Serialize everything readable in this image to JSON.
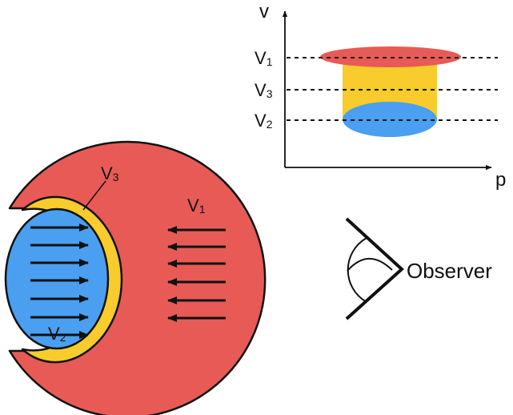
{
  "colors": {
    "region_v1": "#e85a56",
    "region_v3": "#f7cc2c",
    "region_v2": "#4a9ff0",
    "ink": "#111111"
  },
  "diagram": {
    "left": {
      "label_v1_main": "V",
      "label_v1_sub": "1",
      "label_v2_main": "V",
      "label_v2_sub": "2",
      "label_v3_main": "V",
      "label_v3_sub": "3",
      "right_arrows_count": 7,
      "left_arrows_count": 6
    },
    "inset": {
      "y_axis_label": "v",
      "x_axis_label": "p",
      "tick_v1_main": "V",
      "tick_v1_sub": "1",
      "tick_v3_main": "V",
      "tick_v3_sub": "3",
      "tick_v2_main": "V",
      "tick_v2_sub": "2"
    },
    "observer": {
      "label": "Observer",
      "icon": "eye-icon"
    }
  }
}
